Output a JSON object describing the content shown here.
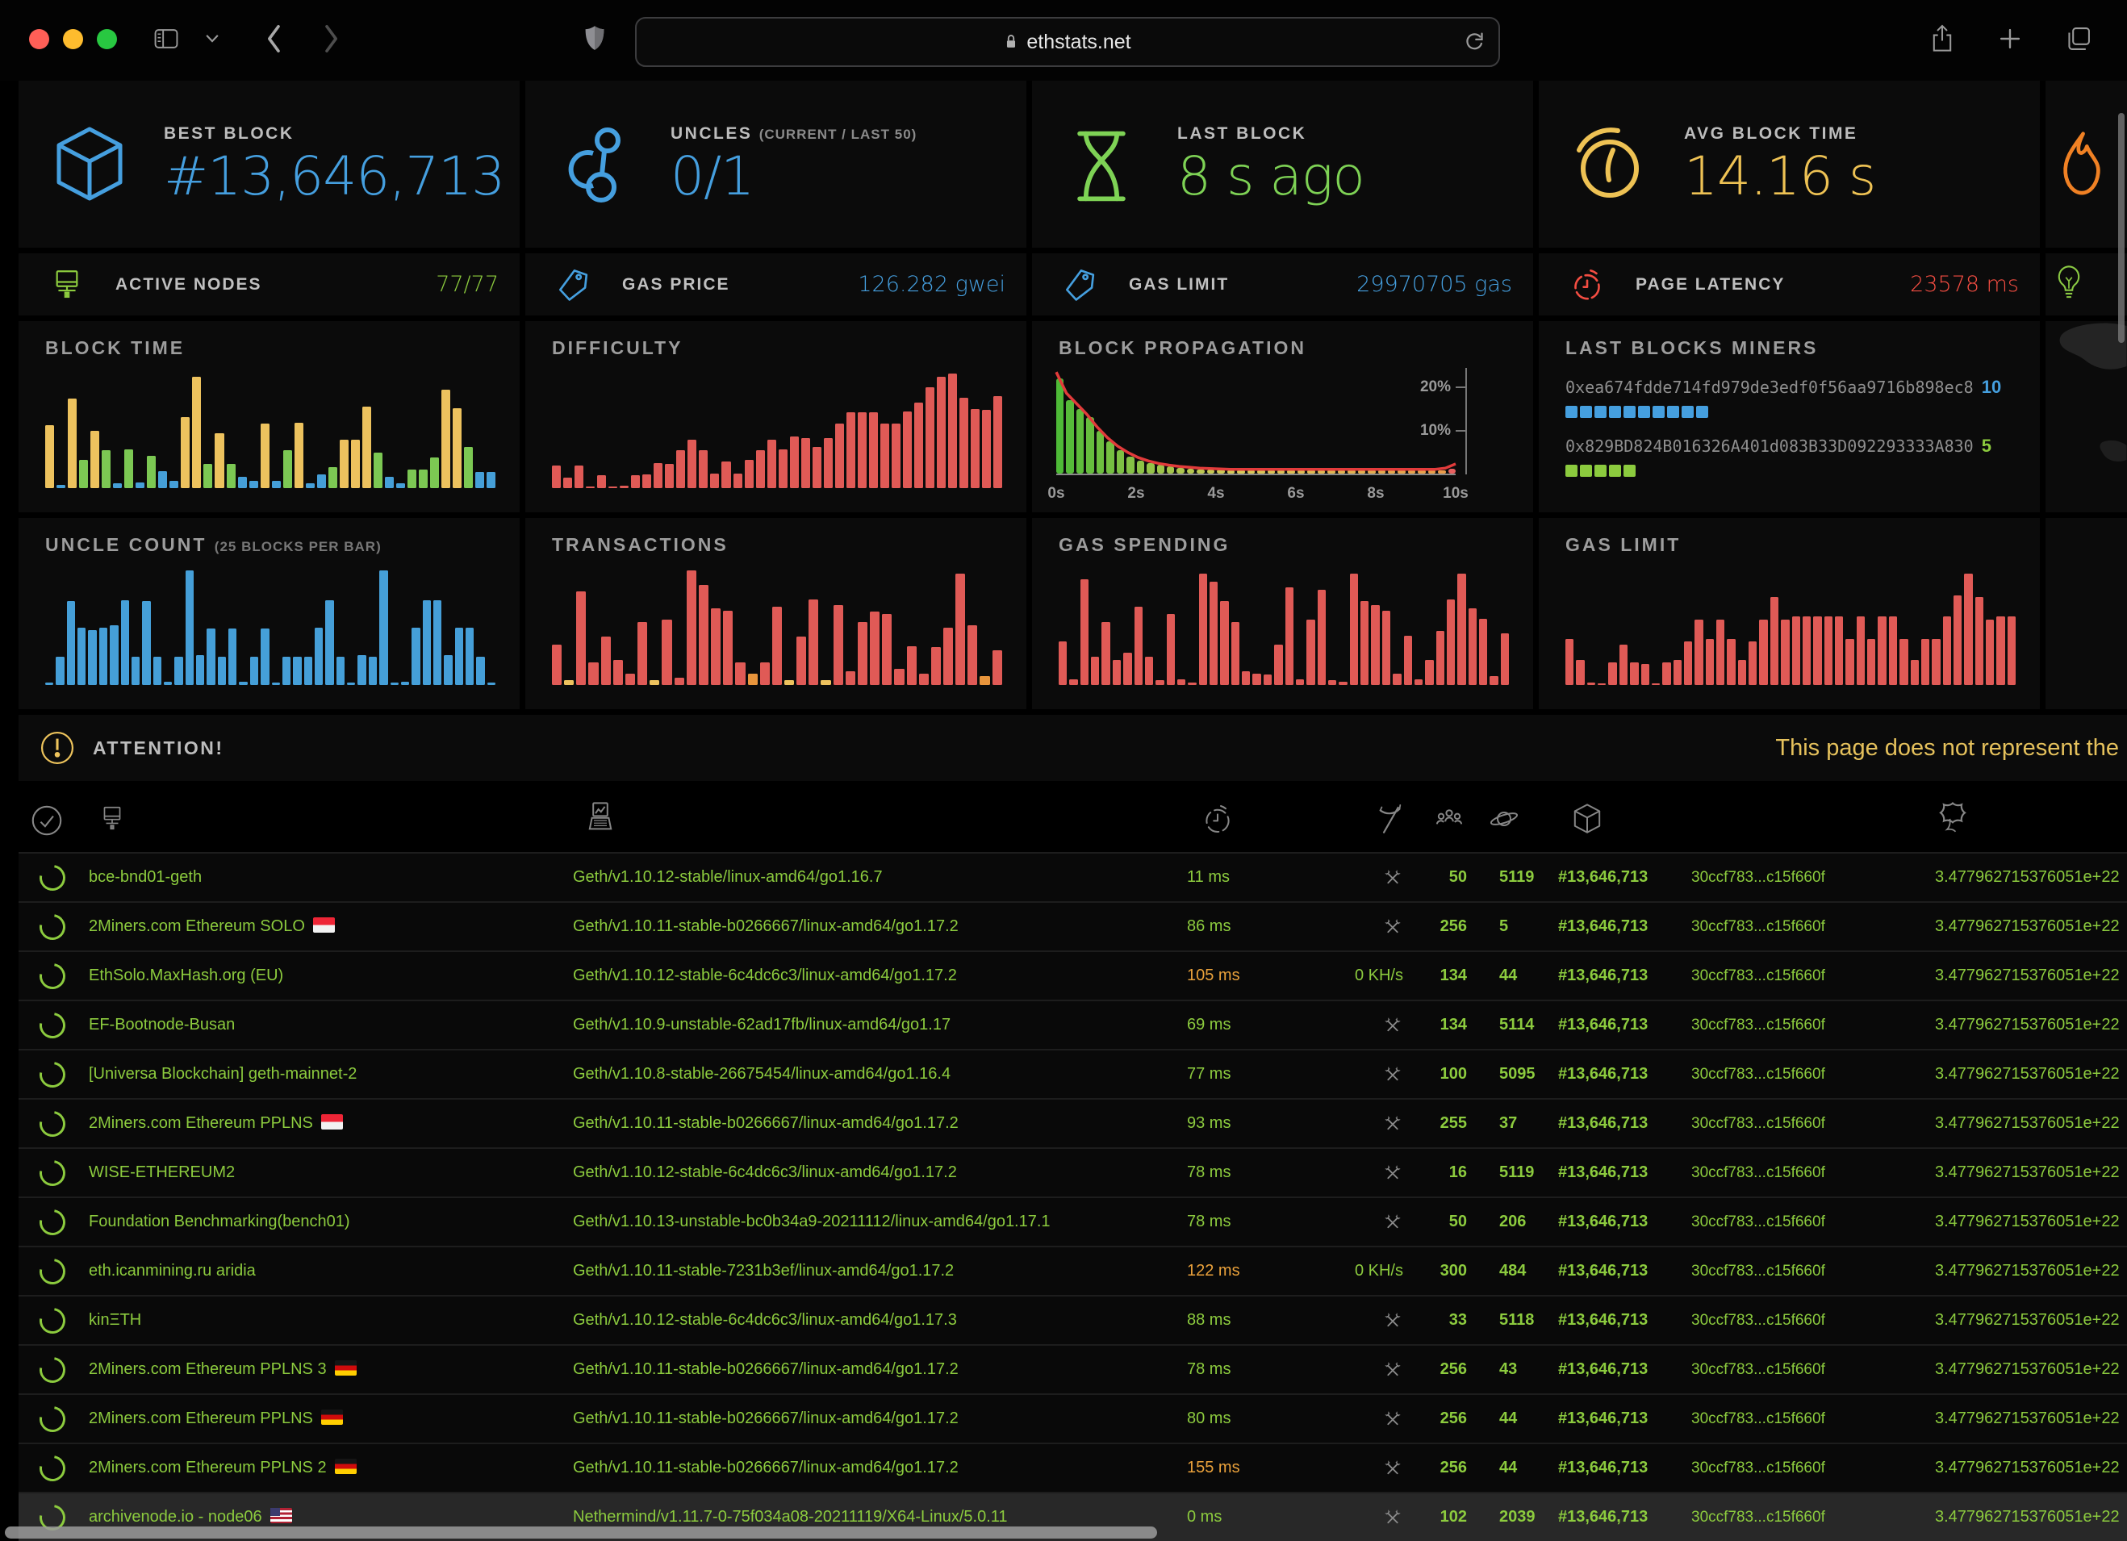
{
  "browser": {
    "url": "ethstats.net"
  },
  "stats_top": [
    {
      "label": "BEST BLOCK",
      "value": "#13,646,713",
      "color": "#459fdf",
      "icon": "cube-icon"
    },
    {
      "label": "UNCLES",
      "sublabel": "(CURRENT / LAST 50)",
      "value": "0/1",
      "color": "#459fdf",
      "icon": "uncles-icon"
    },
    {
      "label": "LAST BLOCK",
      "value": "8 s ago",
      "color": "#7ed255",
      "icon": "hourglass-icon"
    },
    {
      "label": "AVG BLOCK TIME",
      "value": "14.16 s",
      "color": "#eec254",
      "icon": "gauge-icon"
    }
  ],
  "stats_small": [
    {
      "label": "ACTIVE NODES",
      "value": "77/77",
      "color": "#8ccb3e",
      "icon": "monitor-icon"
    },
    {
      "label": "GAS PRICE",
      "value": "126.282 gwei",
      "color": "#459fdf",
      "icon": "tag-icon"
    },
    {
      "label": "GAS LIMIT",
      "value": "29970705 gas",
      "color": "#459fdf",
      "icon": "tag-icon"
    },
    {
      "label": "PAGE LATENCY",
      "value": "23578 ms",
      "color": "#f34d42",
      "icon": "stopwatch-icon"
    }
  ],
  "miners": {
    "title": "LAST BLOCKS MINERS",
    "entries": [
      {
        "address": "0xea674fdde714fd979de3edf0f56aa9716b898ec8",
        "count": 10,
        "color": "#459fdf"
      },
      {
        "address": "0x829BD824B016326A401d083B33D092293333A830",
        "count": 5,
        "color": "#8ccb3e"
      }
    ]
  },
  "attention": {
    "label": "ATTENTION!",
    "marquee": "This page does not represent the"
  },
  "chart_palette": {
    "y": "#edc25e",
    "g": "#7cc853",
    "b": "#459fd8",
    "r": "#e05a56",
    "o": "#e8953c"
  },
  "chart_data": {
    "block_time": {
      "type": "bar",
      "title": "BLOCK TIME",
      "bars": [
        [
          0.55,
          "y"
        ],
        [
          0.03,
          "b"
        ],
        [
          0.78,
          "y"
        ],
        [
          0.25,
          "g"
        ],
        [
          0.5,
          "y"
        ],
        [
          0.33,
          "g"
        ],
        [
          0.04,
          "b"
        ],
        [
          0.34,
          "g"
        ],
        [
          0.05,
          "b"
        ],
        [
          0.28,
          "g"
        ],
        [
          0.15,
          "b"
        ],
        [
          0.06,
          "b"
        ],
        [
          0.62,
          "y"
        ],
        [
          0.97,
          "y"
        ],
        [
          0.21,
          "g"
        ],
        [
          0.48,
          "y"
        ],
        [
          0.21,
          "g"
        ],
        [
          0.1,
          "b"
        ],
        [
          0.06,
          "b"
        ],
        [
          0.56,
          "y"
        ],
        [
          0.06,
          "b"
        ],
        [
          0.33,
          "g"
        ],
        [
          0.57,
          "y"
        ],
        [
          0.04,
          "b"
        ],
        [
          0.12,
          "b"
        ],
        [
          0.18,
          "g"
        ],
        [
          0.42,
          "y"
        ],
        [
          0.42,
          "y"
        ],
        [
          0.71,
          "y"
        ],
        [
          0.31,
          "g"
        ],
        [
          0.1,
          "b"
        ],
        [
          0.04,
          "b"
        ],
        [
          0.16,
          "g"
        ],
        [
          0.16,
          "g"
        ],
        [
          0.27,
          "g"
        ],
        [
          0.86,
          "y"
        ],
        [
          0.7,
          "y"
        ],
        [
          0.36,
          "g"
        ],
        [
          0.14,
          "b"
        ],
        [
          0.14,
          "b"
        ]
      ]
    },
    "difficulty": {
      "type": "bar",
      "title": "DIFFICULTY",
      "color": "r",
      "values": [
        0.2,
        0.09,
        0.2,
        0.01,
        0.11,
        0.01,
        0.02,
        0.11,
        0.12,
        0.22,
        0.21,
        0.33,
        0.42,
        0.33,
        0.13,
        0.23,
        0.13,
        0.25,
        0.33,
        0.42,
        0.34,
        0.45,
        0.44,
        0.36,
        0.44,
        0.56,
        0.66,
        0.66,
        0.66,
        0.56,
        0.56,
        0.67,
        0.75,
        0.88,
        0.97,
        1.0,
        0.79,
        0.69,
        0.68,
        0.8
      ]
    },
    "block_propagation": {
      "type": "bar+line",
      "title": "BLOCK PROPAGATION",
      "ymax": 23,
      "yticks": [
        {
          "label": "20%",
          "value": 20
        },
        {
          "label": "10%",
          "value": 10
        }
      ],
      "xticks": [
        "0s",
        "2s",
        "4s",
        "6s",
        "8s",
        "10s"
      ],
      "values": [
        22,
        17,
        15,
        13,
        10,
        7.5,
        5.5,
        4,
        3,
        2.5,
        2,
        1.6,
        1.3,
        1.1,
        1,
        0.9,
        0.9,
        0.8,
        0.8,
        0.8,
        0.8,
        0.8,
        0.8,
        0.8,
        0.8,
        0.8,
        0.8,
        0.8,
        0.8,
        0.8,
        0.8,
        0.8,
        0.8,
        0.8,
        0.8,
        0.8,
        0.8,
        0.8,
        0.8,
        1.2
      ],
      "line": [
        24,
        19,
        16.5,
        14,
        11,
        8.5,
        6.5,
        5,
        3.8,
        3,
        2.4,
        2,
        1.7,
        1.5,
        1.3,
        1.2,
        1.1,
        1,
        1,
        1,
        1,
        1,
        1,
        1,
        1,
        1,
        1,
        1,
        1,
        1,
        1,
        1,
        1,
        1,
        1,
        1,
        1,
        1,
        1.3,
        2.3
      ],
      "color_stops": [
        "#4eba37",
        "#d8cb59",
        "#eb9a4a"
      ],
      "last_color": "#e86060",
      "line_color": "#e23b3b"
    },
    "uncle_count": {
      "type": "bar",
      "title": "UNCLE COUNT",
      "subtitle": "(25 BLOCKS PER BAR)",
      "color": "b",
      "values": [
        0.02,
        0.25,
        0.73,
        0.5,
        0.48,
        0.5,
        0.52,
        0.74,
        0.25,
        0.73,
        0.25,
        0.03,
        0.25,
        1.0,
        0.26,
        0.49,
        0.25,
        0.49,
        0.03,
        0.25,
        0.49,
        0.02,
        0.25,
        0.25,
        0.25,
        0.5,
        0.74,
        0.25,
        0.02,
        0.26,
        0.25,
        1.0,
        0.02,
        0.03,
        0.5,
        0.74,
        0.74,
        0.26,
        0.5,
        0.5,
        0.25,
        0.02
      ]
    },
    "transactions": {
      "type": "bar",
      "title": "TRANSACTIONS",
      "bars": [
        [
          0.35,
          "r"
        ],
        [
          0.04,
          "y"
        ],
        [
          0.82,
          "r"
        ],
        [
          0.2,
          "r"
        ],
        [
          0.42,
          "r"
        ],
        [
          0.22,
          "r"
        ],
        [
          0.1,
          "r"
        ],
        [
          0.55,
          "r"
        ],
        [
          0.04,
          "y"
        ],
        [
          0.57,
          "r"
        ],
        [
          0.06,
          "r"
        ],
        [
          1.0,
          "r"
        ],
        [
          0.87,
          "r"
        ],
        [
          0.67,
          "r"
        ],
        [
          0.65,
          "r"
        ],
        [
          0.2,
          "r"
        ],
        [
          0.1,
          "o"
        ],
        [
          0.2,
          "r"
        ],
        [
          0.68,
          "r"
        ],
        [
          0.04,
          "y"
        ],
        [
          0.42,
          "r"
        ],
        [
          0.75,
          "r"
        ],
        [
          0.04,
          "y"
        ],
        [
          0.7,
          "r"
        ],
        [
          0.12,
          "r"
        ],
        [
          0.55,
          "r"
        ],
        [
          0.64,
          "r"
        ],
        [
          0.62,
          "r"
        ],
        [
          0.14,
          "r"
        ],
        [
          0.34,
          "r"
        ],
        [
          0.1,
          "r"
        ],
        [
          0.33,
          "r"
        ],
        [
          0.5,
          "r"
        ],
        [
          0.97,
          "r"
        ],
        [
          0.52,
          "r"
        ],
        [
          0.08,
          "o"
        ],
        [
          0.3,
          "r"
        ]
      ]
    },
    "gas_spending": {
      "type": "bar",
      "title": "GAS SPENDING",
      "color": "r",
      "values": [
        0.38,
        0.05,
        0.92,
        0.25,
        0.55,
        0.22,
        0.28,
        0.68,
        0.25,
        0.04,
        0.62,
        0.05,
        0.02,
        0.97,
        0.9,
        0.73,
        0.55,
        0.12,
        0.1,
        0.09,
        0.35,
        0.85,
        0.05,
        0.57,
        0.83,
        0.04,
        0.03,
        0.97,
        0.73,
        0.7,
        0.65,
        0.1,
        0.43,
        0.05,
        0.22,
        0.47,
        0.75,
        0.97,
        0.67,
        0.58,
        0.08,
        0.45
      ]
    },
    "gas_limit": {
      "type": "bar",
      "title": "GAS LIMIT",
      "color": "r",
      "values": [
        0.4,
        0.22,
        0.02,
        0.01,
        0.2,
        0.35,
        0.2,
        0.18,
        0.01,
        0.2,
        0.22,
        0.38,
        0.57,
        0.4,
        0.57,
        0.4,
        0.22,
        0.38,
        0.57,
        0.77,
        0.57,
        0.6,
        0.6,
        0.6,
        0.6,
        0.6,
        0.4,
        0.6,
        0.4,
        0.6,
        0.6,
        0.4,
        0.22,
        0.4,
        0.4,
        0.6,
        0.78,
        0.97,
        0.77,
        0.57,
        0.6,
        0.6
      ]
    }
  },
  "table": {
    "columns": [
      "status",
      "name",
      "client",
      "latency",
      "mining",
      "peers",
      "pending",
      "block",
      "hash",
      "difficulty"
    ],
    "rows": [
      {
        "name": "bce-bnd01-geth",
        "flag": null,
        "client": "Geth/v1.10.12-stable/linux-amd64/go1.16.7",
        "latency": "11 ms",
        "latency_state": "good",
        "mining": null,
        "peers": "50",
        "pending": "5119",
        "block": "#13,646,713",
        "hash": "30ccf783...c15f660f",
        "difficulty": "3.477962715376051e+22"
      },
      {
        "name": "2Miners.com Ethereum SOLO",
        "flag": "sg",
        "client": "Geth/v1.10.11-stable-b0266667/linux-amd64/go1.17.2",
        "latency": "86 ms",
        "latency_state": "good",
        "mining": null,
        "peers": "256",
        "pending": "5",
        "block": "#13,646,713",
        "hash": "30ccf783...c15f660f",
        "difficulty": "3.477962715376051e+22"
      },
      {
        "name": "EthSolo.MaxHash.org (EU)",
        "flag": null,
        "client": "Geth/v1.10.12-stable-6c4dc6c3/linux-amd64/go1.17.2",
        "latency": "105 ms",
        "latency_state": "warn",
        "mining": "0 KH/s",
        "peers": "134",
        "pending": "44",
        "block": "#13,646,713",
        "hash": "30ccf783...c15f660f",
        "difficulty": "3.477962715376051e+22"
      },
      {
        "name": "EF-Bootnode-Busan",
        "flag": null,
        "client": "Geth/v1.10.9-unstable-62ad17fb/linux-amd64/go1.17",
        "latency": "69 ms",
        "latency_state": "good",
        "mining": null,
        "peers": "134",
        "pending": "5114",
        "block": "#13,646,713",
        "hash": "30ccf783...c15f660f",
        "difficulty": "3.477962715376051e+22"
      },
      {
        "name": "[Universa Blockchain] geth-mainnet-2",
        "flag": null,
        "client": "Geth/v1.10.8-stable-26675454/linux-amd64/go1.16.4",
        "latency": "77 ms",
        "latency_state": "good",
        "mining": null,
        "peers": "100",
        "pending": "5095",
        "block": "#13,646,713",
        "hash": "30ccf783...c15f660f",
        "difficulty": "3.477962715376051e+22"
      },
      {
        "name": "2Miners.com Ethereum PPLNS",
        "flag": "sg",
        "client": "Geth/v1.10.11-stable-b0266667/linux-amd64/go1.17.2",
        "latency": "93 ms",
        "latency_state": "good",
        "mining": null,
        "peers": "255",
        "pending": "37",
        "block": "#13,646,713",
        "hash": "30ccf783...c15f660f",
        "difficulty": "3.477962715376051e+22"
      },
      {
        "name": "WISE-ETHEREUM2",
        "flag": null,
        "client": "Geth/v1.10.12-stable-6c4dc6c3/linux-amd64/go1.17.2",
        "latency": "78 ms",
        "latency_state": "good",
        "mining": null,
        "peers": "16",
        "pending": "5119",
        "block": "#13,646,713",
        "hash": "30ccf783...c15f660f",
        "difficulty": "3.477962715376051e+22"
      },
      {
        "name": "Foundation Benchmarking(bench01)",
        "flag": null,
        "client": "Geth/v1.10.13-unstable-bc0b34a9-20211112/linux-amd64/go1.17.1",
        "latency": "78 ms",
        "latency_state": "good",
        "mining": null,
        "peers": "50",
        "pending": "206",
        "block": "#13,646,713",
        "hash": "30ccf783...c15f660f",
        "difficulty": "3.477962715376051e+22"
      },
      {
        "name": "eth.icanmining.ru aridia",
        "flag": null,
        "client": "Geth/v1.10.11-stable-7231b3ef/linux-amd64/go1.17.2",
        "latency": "122 ms",
        "latency_state": "warn",
        "mining": "0 KH/s",
        "peers": "300",
        "pending": "484",
        "block": "#13,646,713",
        "hash": "30ccf783...c15f660f",
        "difficulty": "3.477962715376051e+22"
      },
      {
        "name": "kinΞTH",
        "flag": null,
        "client": "Geth/v1.10.12-stable-6c4dc6c3/linux-amd64/go1.17.3",
        "latency": "88 ms",
        "latency_state": "good",
        "mining": null,
        "peers": "33",
        "pending": "5118",
        "block": "#13,646,713",
        "hash": "30ccf783...c15f660f",
        "difficulty": "3.477962715376051e+22"
      },
      {
        "name": "2Miners.com Ethereum PPLNS 3",
        "flag": "de",
        "client": "Geth/v1.10.11-stable-b0266667/linux-amd64/go1.17.2",
        "latency": "78 ms",
        "latency_state": "good",
        "mining": null,
        "peers": "256",
        "pending": "43",
        "block": "#13,646,713",
        "hash": "30ccf783...c15f660f",
        "difficulty": "3.477962715376051e+22"
      },
      {
        "name": "2Miners.com Ethereum PPLNS",
        "flag": "de",
        "client": "Geth/v1.10.11-stable-b0266667/linux-amd64/go1.17.2",
        "latency": "80 ms",
        "latency_state": "good",
        "mining": null,
        "peers": "256",
        "pending": "44",
        "block": "#13,646,713",
        "hash": "30ccf783...c15f660f",
        "difficulty": "3.477962715376051e+22"
      },
      {
        "name": "2Miners.com Ethereum PPLNS 2",
        "flag": "de",
        "client": "Geth/v1.10.11-stable-b0266667/linux-amd64/go1.17.2",
        "latency": "155 ms",
        "latency_state": "warn",
        "mining": null,
        "peers": "256",
        "pending": "44",
        "block": "#13,646,713",
        "hash": "30ccf783...c15f660f",
        "difficulty": "3.477962715376051e+22"
      },
      {
        "name": "archivenode.io - node06",
        "flag": "us",
        "client": "Nethermind/v1.11.7-0-75f034a08-20211119/X64-Linux/5.0.11",
        "latency": "0 ms",
        "latency_state": "good",
        "mining": null,
        "peers": "102",
        "pending": "2039",
        "block": "#13,646,713",
        "hash": "30ccf783...c15f660f",
        "difficulty": "3.477962715376051e+22",
        "highlight": true
      }
    ]
  }
}
